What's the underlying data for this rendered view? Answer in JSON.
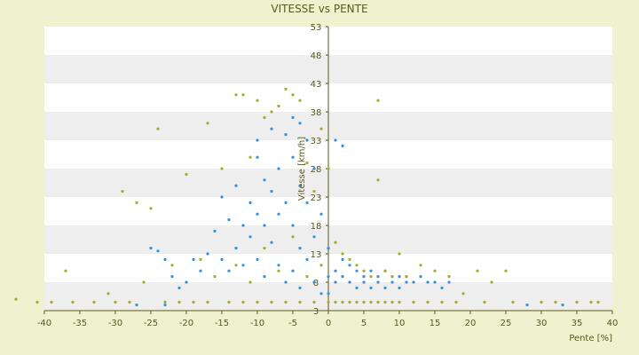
{
  "chart_data": {
    "type": "scatter",
    "title": "VITESSE vs PENTE",
    "xlabel": "Pente [%]",
    "ylabel": "Vitesse [km/h]",
    "xlim": [
      -40,
      40
    ],
    "ylim": [
      3,
      53
    ],
    "x_ticks": [
      -40,
      -35,
      -30,
      -25,
      -20,
      -15,
      -10,
      -5,
      0,
      5,
      10,
      15,
      20,
      25,
      30,
      35,
      40
    ],
    "y_ticks": [
      3,
      8,
      13,
      18,
      23,
      28,
      33,
      38,
      43,
      48,
      53
    ],
    "grid": "horizontal-bands",
    "legend": "none",
    "colors": {
      "background": "#eef2cf",
      "plot_band_light": "#ffffff",
      "plot_band_dark": "#eeeeee",
      "axis": "#5a5a1a",
      "series_1": "#3a8fd9",
      "series_2": "#a9a832"
    },
    "series": [
      {
        "color": "#3a8fd9",
        "points": [
          [
            -25,
            14
          ],
          [
            -24,
            13.5
          ],
          [
            -23,
            12
          ],
          [
            -22,
            9
          ],
          [
            -21,
            7
          ],
          [
            -20,
            8
          ],
          [
            -19,
            12
          ],
          [
            -18,
            10
          ],
          [
            -17,
            13
          ],
          [
            -16,
            17
          ],
          [
            -15,
            12
          ],
          [
            -15,
            23
          ],
          [
            -14,
            19
          ],
          [
            -14,
            10
          ],
          [
            -13,
            14
          ],
          [
            -13,
            25
          ],
          [
            -12,
            18
          ],
          [
            -12,
            11
          ],
          [
            -11,
            22
          ],
          [
            -11,
            16
          ],
          [
            -10,
            30
          ],
          [
            -10,
            33
          ],
          [
            -10,
            20
          ],
          [
            -10,
            12
          ],
          [
            -9,
            26
          ],
          [
            -9,
            18
          ],
          [
            -9,
            9
          ],
          [
            -8,
            24
          ],
          [
            -8,
            35
          ],
          [
            -8,
            15
          ],
          [
            -7,
            28
          ],
          [
            -7,
            20
          ],
          [
            -7,
            11
          ],
          [
            -6,
            34
          ],
          [
            -6,
            22
          ],
          [
            -6,
            8
          ],
          [
            -5,
            37
          ],
          [
            -5,
            30
          ],
          [
            -5,
            18
          ],
          [
            -5,
            10
          ],
          [
            -4,
            36
          ],
          [
            -4,
            25
          ],
          [
            -4,
            14
          ],
          [
            -4,
            7
          ],
          [
            -3,
            33
          ],
          [
            -3,
            22
          ],
          [
            -3,
            12
          ],
          [
            -2,
            28
          ],
          [
            -2,
            16
          ],
          [
            -2,
            8
          ],
          [
            -1,
            20
          ],
          [
            -1,
            11
          ],
          [
            -1,
            6
          ],
          [
            0,
            14
          ],
          [
            0,
            9
          ],
          [
            0,
            6
          ],
          [
            1,
            10
          ],
          [
            1,
            8
          ],
          [
            2,
            12
          ],
          [
            2,
            9
          ],
          [
            3,
            11
          ],
          [
            3,
            8
          ],
          [
            4,
            10
          ],
          [
            4,
            7
          ],
          [
            5,
            9
          ],
          [
            5,
            8
          ],
          [
            6,
            10
          ],
          [
            6,
            7
          ],
          [
            7,
            9
          ],
          [
            7,
            8
          ],
          [
            8,
            10
          ],
          [
            8,
            7
          ],
          [
            9,
            9
          ],
          [
            9,
            8
          ],
          [
            10,
            9
          ],
          [
            10,
            7
          ],
          [
            11,
            8
          ],
          [
            11,
            9
          ],
          [
            12,
            8
          ],
          [
            13,
            9
          ],
          [
            14,
            8
          ],
          [
            15,
            8
          ],
          [
            16,
            7
          ],
          [
            17,
            8
          ],
          [
            2,
            32
          ],
          [
            1,
            33
          ],
          [
            -23,
            4
          ],
          [
            -27,
            4
          ],
          [
            28,
            4
          ],
          [
            33,
            4
          ]
        ]
      },
      {
        "color": "#a9a832",
        "points": [
          [
            -44,
            5
          ],
          [
            -41,
            4.5
          ],
          [
            -39,
            4.5
          ],
          [
            -37,
            10
          ],
          [
            -36,
            4.5
          ],
          [
            -33,
            4.5
          ],
          [
            -31,
            6
          ],
          [
            -30,
            4.5
          ],
          [
            -29,
            24
          ],
          [
            -28,
            4.5
          ],
          [
            -27,
            22
          ],
          [
            -26,
            8
          ],
          [
            -25,
            21
          ],
          [
            -24,
            35
          ],
          [
            -23,
            4.5
          ],
          [
            -22,
            11
          ],
          [
            -21,
            4.5
          ],
          [
            -20,
            27
          ],
          [
            -19,
            4.5
          ],
          [
            -18,
            12
          ],
          [
            -17,
            36
          ],
          [
            -17,
            4.5
          ],
          [
            -16,
            9
          ],
          [
            -15,
            28
          ],
          [
            -14,
            4.5
          ],
          [
            -13,
            41
          ],
          [
            -13,
            11
          ],
          [
            -12,
            41
          ],
          [
            -12,
            4.5
          ],
          [
            -11,
            30
          ],
          [
            -11,
            8
          ],
          [
            -10,
            40
          ],
          [
            -10,
            4.5
          ],
          [
            -9,
            37
          ],
          [
            -9,
            14
          ],
          [
            -8,
            38
          ],
          [
            -8,
            4.5
          ],
          [
            -7,
            39
          ],
          [
            -7,
            10
          ],
          [
            -6,
            42
          ],
          [
            -6,
            4.5
          ],
          [
            -5,
            41
          ],
          [
            -5,
            16
          ],
          [
            -4,
            40
          ],
          [
            -4,
            4.5
          ],
          [
            -3,
            29
          ],
          [
            -3,
            9
          ],
          [
            -2,
            24
          ],
          [
            -2,
            4.5
          ],
          [
            -1,
            35
          ],
          [
            -1,
            11
          ],
          [
            0,
            28
          ],
          [
            0,
            4.5
          ],
          [
            1,
            15
          ],
          [
            1,
            4.5
          ],
          [
            2,
            13
          ],
          [
            2,
            4.5
          ],
          [
            3,
            12
          ],
          [
            3,
            4.5
          ],
          [
            4,
            11
          ],
          [
            4,
            4.5
          ],
          [
            5,
            10
          ],
          [
            5,
            4.5
          ],
          [
            6,
            9
          ],
          [
            6,
            4.5
          ],
          [
            7,
            40
          ],
          [
            7,
            26
          ],
          [
            7,
            4.5
          ],
          [
            8,
            10
          ],
          [
            8,
            4.5
          ],
          [
            9,
            9
          ],
          [
            9,
            4.5
          ],
          [
            10,
            13
          ],
          [
            10,
            4.5
          ],
          [
            11,
            9
          ],
          [
            12,
            4.5
          ],
          [
            13,
            11
          ],
          [
            14,
            4.5
          ],
          [
            15,
            10
          ],
          [
            16,
            4.5
          ],
          [
            17,
            9
          ],
          [
            18,
            4.5
          ],
          [
            19,
            6
          ],
          [
            21,
            10
          ],
          [
            22,
            4.5
          ],
          [
            23,
            8
          ],
          [
            25,
            10
          ],
          [
            26,
            4.5
          ],
          [
            30,
            4.5
          ],
          [
            32,
            4.5
          ],
          [
            35,
            4.5
          ],
          [
            37,
            4.5
          ],
          [
            38,
            4.5
          ]
        ]
      }
    ]
  }
}
